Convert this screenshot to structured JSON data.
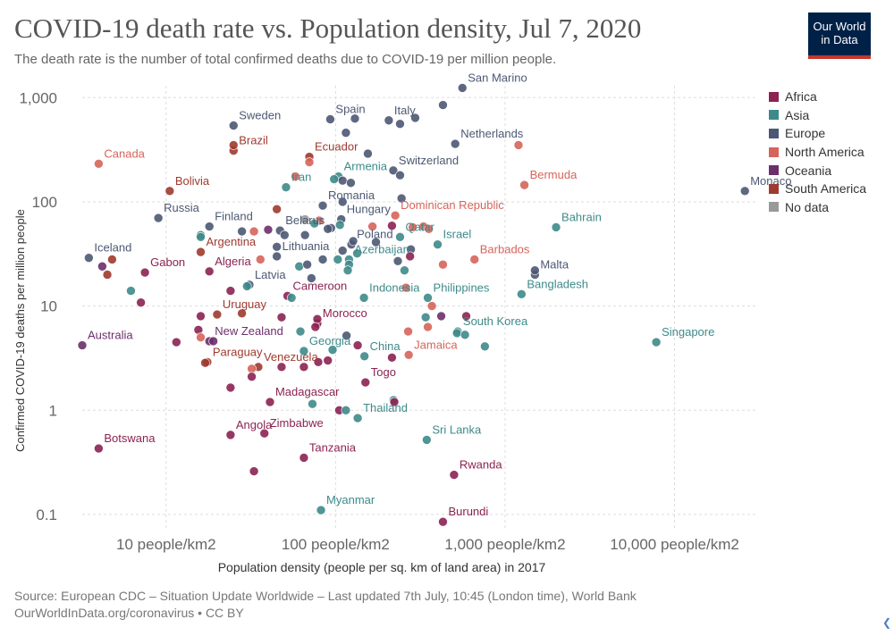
{
  "header": {
    "title": "COVID-19 death rate vs. Population density, Jul 7, 2020",
    "subtitle": "The death rate is the number of total confirmed deaths due to COVID-19 per million people.",
    "logo_line1": "Our World",
    "logo_line2": "in Data"
  },
  "footer": {
    "source": "Source: European CDC – Situation Update Worldwide – Last updated 7th July, 10:45 (London time), World Bank",
    "credit": "OurWorldInData.org/coronavirus • CC BY"
  },
  "legend": [
    {
      "name": "Africa",
      "color": "#8b2252"
    },
    {
      "name": "Asia",
      "color": "#3e8a8a"
    },
    {
      "name": "Europe",
      "color": "#4c5873"
    },
    {
      "name": "North America",
      "color": "#d6645a"
    },
    {
      "name": "Oceania",
      "color": "#6b2f6b"
    },
    {
      "name": "South America",
      "color": "#9e3a2f"
    },
    {
      "name": "No data",
      "color": "#999999"
    }
  ],
  "chart_data": {
    "type": "scatter",
    "xlabel": "Population density (people per sq. km of land area) in 2017",
    "ylabel": "Confirmed COVID-19 deaths per million people",
    "x_scale": "log",
    "y_scale": "log",
    "xlim": [
      3.2,
      30000
    ],
    "ylim": [
      0.07,
      1300
    ],
    "x_ticks": [
      {
        "v": 10,
        "label": "10 people/km2"
      },
      {
        "v": 100,
        "label": "100 people/km2"
      },
      {
        "v": 1000,
        "label": "1,000 people/km2"
      },
      {
        "v": 10000,
        "label": "10,000 people/km2"
      }
    ],
    "y_ticks": [
      {
        "v": 0.1,
        "label": "0.1"
      },
      {
        "v": 1,
        "label": "1"
      },
      {
        "v": 10,
        "label": "10"
      },
      {
        "v": 100,
        "label": "100"
      },
      {
        "v": 1000,
        "label": "1,000"
      }
    ],
    "grid": true,
    "legend_position": "right",
    "points": [
      {
        "label": "San Marino",
        "x": 560,
        "y": 1240,
        "region": "Europe"
      },
      {
        "label": "Spain",
        "x": 93,
        "y": 620,
        "region": "Europe"
      },
      {
        "label": "Italy",
        "x": 206,
        "y": 605,
        "region": "Europe"
      },
      {
        "label": "Sweden",
        "x": 25,
        "y": 540,
        "region": "Europe"
      },
      {
        "label": "Netherlands",
        "x": 508,
        "y": 360,
        "region": "Europe"
      },
      {
        "label": "Brazil",
        "x": 25,
        "y": 310,
        "region": "South America"
      },
      {
        "label": "Ecuador",
        "x": 70,
        "y": 270,
        "region": "South America"
      },
      {
        "label": "Canada",
        "x": 4,
        "y": 232,
        "region": "North America"
      },
      {
        "label": "Switzerland",
        "x": 219,
        "y": 200,
        "region": "Europe"
      },
      {
        "label": "Armenia",
        "x": 104,
        "y": 175,
        "region": "Asia"
      },
      {
        "label": "Bermuda",
        "x": 1300,
        "y": 145,
        "region": "North America"
      },
      {
        "label": "Iran",
        "x": 51,
        "y": 138,
        "region": "Asia"
      },
      {
        "label": "Bolivia",
        "x": 10.5,
        "y": 127,
        "region": "South America"
      },
      {
        "label": "Monaco",
        "x": 26000,
        "y": 127,
        "region": "Europe"
      },
      {
        "label": "Romania",
        "x": 84,
        "y": 92,
        "region": "Europe"
      },
      {
        "label": "Dominican Republic",
        "x": 225,
        "y": 74,
        "region": "North America"
      },
      {
        "label": "Russia",
        "x": 9,
        "y": 70,
        "region": "Europe"
      },
      {
        "label": "Hungary",
        "x": 108,
        "y": 68,
        "region": "Europe"
      },
      {
        "label": "Finland",
        "x": 18,
        "y": 58,
        "region": "Europe"
      },
      {
        "label": "Bahrain",
        "x": 2000,
        "y": 57,
        "region": "Asia"
      },
      {
        "label": "Belarus",
        "x": 47,
        "y": 53,
        "region": "Europe"
      },
      {
        "label": "Qatar",
        "x": 240,
        "y": 46,
        "region": "Asia"
      },
      {
        "label": "Poland",
        "x": 124,
        "y": 39,
        "region": "Europe"
      },
      {
        "label": "Israel",
        "x": 400,
        "y": 39,
        "region": "Asia"
      },
      {
        "label": "Argentina",
        "x": 16,
        "y": 33,
        "region": "South America"
      },
      {
        "label": "Lithuania",
        "x": 45,
        "y": 30,
        "region": "Europe"
      },
      {
        "label": "Azerbaijan",
        "x": 120,
        "y": 28,
        "region": "Asia"
      },
      {
        "label": "Iceland",
        "x": 3.5,
        "y": 29,
        "region": "Europe"
      },
      {
        "label": "Barbados",
        "x": 660,
        "y": 28,
        "region": "North America"
      },
      {
        "label": "Gabon",
        "x": 7.5,
        "y": 21,
        "region": "Africa"
      },
      {
        "label": "Algeria",
        "x": 18,
        "y": 21.5,
        "region": "Africa"
      },
      {
        "label": "Malta",
        "x": 1500,
        "y": 20,
        "region": "Europe"
      },
      {
        "label": "Latvia",
        "x": 31,
        "y": 16,
        "region": "Europe"
      },
      {
        "label": "Cameroon",
        "x": 52,
        "y": 12.5,
        "region": "Africa"
      },
      {
        "label": "Indonesia",
        "x": 147,
        "y": 12,
        "region": "Asia"
      },
      {
        "label": "Philippines",
        "x": 350,
        "y": 12,
        "region": "Asia"
      },
      {
        "label": "Bangladesh",
        "x": 1250,
        "y": 13,
        "region": "Asia"
      },
      {
        "label": "Uruguay",
        "x": 20,
        "y": 8.3,
        "region": "South America"
      },
      {
        "label": "Morocco",
        "x": 78,
        "y": 6.8,
        "region": "Africa"
      },
      {
        "label": "South Korea",
        "x": 525,
        "y": 5.7,
        "region": "Asia"
      },
      {
        "label": "New Zealand",
        "x": 18,
        "y": 4.6,
        "region": "Oceania"
      },
      {
        "label": "Singapore",
        "x": 7800,
        "y": 4.5,
        "region": "Asia"
      },
      {
        "label": "Australia",
        "x": 3.2,
        "y": 4.2,
        "region": "Oceania"
      },
      {
        "label": "Georgia",
        "x": 65,
        "y": 3.7,
        "region": "Asia"
      },
      {
        "label": "China",
        "x": 148,
        "y": 3.3,
        "region": "Asia"
      },
      {
        "label": "Jamaica",
        "x": 270,
        "y": 3.4,
        "region": "North America"
      },
      {
        "label": "Paraguay",
        "x": 17.5,
        "y": 2.9,
        "region": "South America"
      },
      {
        "label": "Venezuela",
        "x": 35,
        "y": 2.6,
        "region": "South America"
      },
      {
        "label": "Togo",
        "x": 150,
        "y": 1.85,
        "region": "Africa"
      },
      {
        "label": "Madagascar",
        "x": 41,
        "y": 1.2,
        "region": "Africa"
      },
      {
        "label": "Thailand",
        "x": 135,
        "y": 0.84,
        "region": "Asia"
      },
      {
        "label": "Angola",
        "x": 24,
        "y": 0.58,
        "region": "Africa"
      },
      {
        "label": "Zimbabwe",
        "x": 38,
        "y": 0.6,
        "region": "Africa"
      },
      {
        "label": "Sri Lanka",
        "x": 345,
        "y": 0.52,
        "region": "Asia"
      },
      {
        "label": "Botswana",
        "x": 4,
        "y": 0.43,
        "region": "Africa"
      },
      {
        "label": "Tanzania",
        "x": 65,
        "y": 0.35,
        "region": "Africa"
      },
      {
        "label": "Rwanda",
        "x": 500,
        "y": 0.24,
        "region": "Africa"
      },
      {
        "label": "Myanmar",
        "x": 82,
        "y": 0.11,
        "region": "Asia"
      },
      {
        "label": "Burundi",
        "x": 430,
        "y": 0.085,
        "region": "Africa"
      },
      {
        "x": 130,
        "y": 630,
        "region": "Europe"
      },
      {
        "x": 295,
        "y": 640,
        "region": "Europe"
      },
      {
        "x": 430,
        "y": 850,
        "region": "Europe"
      },
      {
        "x": 240,
        "y": 560,
        "region": "Europe"
      },
      {
        "x": 115,
        "y": 460,
        "region": "Europe"
      },
      {
        "x": 1200,
        "y": 350,
        "region": "North America"
      },
      {
        "x": 155,
        "y": 290,
        "region": "Europe"
      },
      {
        "x": 25,
        "y": 350,
        "region": "South America"
      },
      {
        "x": 70,
        "y": 240,
        "region": "North America"
      },
      {
        "x": 240,
        "y": 180,
        "region": "Europe"
      },
      {
        "x": 110,
        "y": 160,
        "region": "Europe"
      },
      {
        "x": 123,
        "y": 152,
        "region": "Europe"
      },
      {
        "x": 58,
        "y": 175,
        "region": "North America"
      },
      {
        "x": 98,
        "y": 165,
        "region": "Asia"
      },
      {
        "x": 245,
        "y": 108,
        "region": "Europe"
      },
      {
        "x": 110,
        "y": 100,
        "region": "Europe"
      },
      {
        "x": 45,
        "y": 85,
        "region": "South America"
      },
      {
        "x": 66,
        "y": 68,
        "region": "No data"
      },
      {
        "x": 80,
        "y": 66,
        "region": "North America"
      },
      {
        "x": 106,
        "y": 60,
        "region": "Asia"
      },
      {
        "x": 94,
        "y": 56,
        "region": "Europe"
      },
      {
        "x": 75,
        "y": 62,
        "region": "Asia"
      },
      {
        "x": 165,
        "y": 58,
        "region": "North America"
      },
      {
        "x": 215,
        "y": 59,
        "region": "Africa"
      },
      {
        "x": 285,
        "y": 57,
        "region": "North America"
      },
      {
        "x": 330,
        "y": 58,
        "region": "North America"
      },
      {
        "x": 355,
        "y": 55,
        "region": "North America"
      },
      {
        "x": 16,
        "y": 48,
        "region": "Asia"
      },
      {
        "x": 16,
        "y": 46,
        "region": "Asia"
      },
      {
        "x": 28,
        "y": 52,
        "region": "Europe"
      },
      {
        "x": 33,
        "y": 52,
        "region": "North America"
      },
      {
        "x": 40,
        "y": 54,
        "region": "Oceania"
      },
      {
        "x": 50,
        "y": 48,
        "region": "Europe"
      },
      {
        "x": 66,
        "y": 48,
        "region": "Europe"
      },
      {
        "x": 90,
        "y": 55,
        "region": "Europe"
      },
      {
        "x": 45,
        "y": 37,
        "region": "Europe"
      },
      {
        "x": 110,
        "y": 34,
        "region": "Europe"
      },
      {
        "x": 127,
        "y": 42,
        "region": "Europe"
      },
      {
        "x": 134,
        "y": 32,
        "region": "Asia"
      },
      {
        "x": 173,
        "y": 41,
        "region": "Europe"
      },
      {
        "x": 278,
        "y": 35,
        "region": "Europe"
      },
      {
        "x": 275,
        "y": 30,
        "region": "Africa"
      },
      {
        "x": 4.2,
        "y": 24,
        "region": "Oceania"
      },
      {
        "x": 4.5,
        "y": 20,
        "region": "South America"
      },
      {
        "x": 4.8,
        "y": 28,
        "region": "South America"
      },
      {
        "x": 36,
        "y": 28,
        "region": "North America"
      },
      {
        "x": 61,
        "y": 24,
        "region": "Asia"
      },
      {
        "x": 68,
        "y": 25,
        "region": "Europe"
      },
      {
        "x": 84,
        "y": 28,
        "region": "Europe"
      },
      {
        "x": 103,
        "y": 28,
        "region": "Asia"
      },
      {
        "x": 120,
        "y": 25,
        "region": "Asia"
      },
      {
        "x": 118,
        "y": 22,
        "region": "Asia"
      },
      {
        "x": 233,
        "y": 27,
        "region": "Europe"
      },
      {
        "x": 255,
        "y": 22,
        "region": "Asia"
      },
      {
        "x": 430,
        "y": 25,
        "region": "North America"
      },
      {
        "x": 72,
        "y": 18.5,
        "region": "Europe"
      },
      {
        "x": 1500,
        "y": 22,
        "region": "Europe"
      },
      {
        "x": 24,
        "y": 14,
        "region": "Africa"
      },
      {
        "x": 30,
        "y": 15.5,
        "region": "Asia"
      },
      {
        "x": 55,
        "y": 12,
        "region": "Asia"
      },
      {
        "x": 6.2,
        "y": 14,
        "region": "Asia"
      },
      {
        "x": 7.1,
        "y": 10.8,
        "region": "Africa"
      },
      {
        "x": 260,
        "y": 15,
        "region": "North America"
      },
      {
        "x": 370,
        "y": 10,
        "region": "North America"
      },
      {
        "x": 16,
        "y": 8,
        "region": "Africa"
      },
      {
        "x": 28,
        "y": 8.5,
        "region": "South America"
      },
      {
        "x": 48,
        "y": 7.8,
        "region": "Africa"
      },
      {
        "x": 78,
        "y": 7.5,
        "region": "Africa"
      },
      {
        "x": 340,
        "y": 7.8,
        "region": "Asia"
      },
      {
        "x": 420,
        "y": 8,
        "region": "Oceania"
      },
      {
        "x": 590,
        "y": 8,
        "region": "Africa"
      },
      {
        "x": 76,
        "y": 6.3,
        "region": "Africa"
      },
      {
        "x": 268,
        "y": 5.7,
        "region": "North America"
      },
      {
        "x": 350,
        "y": 6.3,
        "region": "North America"
      },
      {
        "x": 520,
        "y": 5.5,
        "region": "Asia"
      },
      {
        "x": 580,
        "y": 5.3,
        "region": "Asia"
      },
      {
        "x": 11.5,
        "y": 4.5,
        "region": "Africa"
      },
      {
        "x": 15.5,
        "y": 5.9,
        "region": "Africa"
      },
      {
        "x": 16,
        "y": 5,
        "region": "North America"
      },
      {
        "x": 19,
        "y": 4.6,
        "region": "Oceania"
      },
      {
        "x": 62,
        "y": 5.7,
        "region": "Asia"
      },
      {
        "x": 116,
        "y": 5.2,
        "region": "Europe"
      },
      {
        "x": 135,
        "y": 4.2,
        "region": "Africa"
      },
      {
        "x": 760,
        "y": 4.1,
        "region": "Asia"
      },
      {
        "x": 96,
        "y": 3.8,
        "region": "Asia"
      },
      {
        "x": 215,
        "y": 3.2,
        "region": "Africa"
      },
      {
        "x": 17,
        "y": 2.85,
        "region": "South America"
      },
      {
        "x": 32,
        "y": 2.5,
        "region": "North America"
      },
      {
        "x": 48,
        "y": 2.6,
        "region": "Africa"
      },
      {
        "x": 65,
        "y": 2.6,
        "region": "Africa"
      },
      {
        "x": 79,
        "y": 2.9,
        "region": "Africa"
      },
      {
        "x": 90,
        "y": 3,
        "region": "Africa"
      },
      {
        "x": 32,
        "y": 2.1,
        "region": "Africa"
      },
      {
        "x": 24,
        "y": 1.65,
        "region": "Africa"
      },
      {
        "x": 73,
        "y": 1.15,
        "region": "Asia"
      },
      {
        "x": 105,
        "y": 1,
        "region": "Africa"
      },
      {
        "x": 115,
        "y": 1,
        "region": "Asia"
      },
      {
        "x": 220,
        "y": 1.25,
        "region": "Asia"
      },
      {
        "x": 222,
        "y": 1.2,
        "region": "Africa"
      },
      {
        "x": 33,
        "y": 0.26,
        "region": "Africa"
      }
    ]
  }
}
